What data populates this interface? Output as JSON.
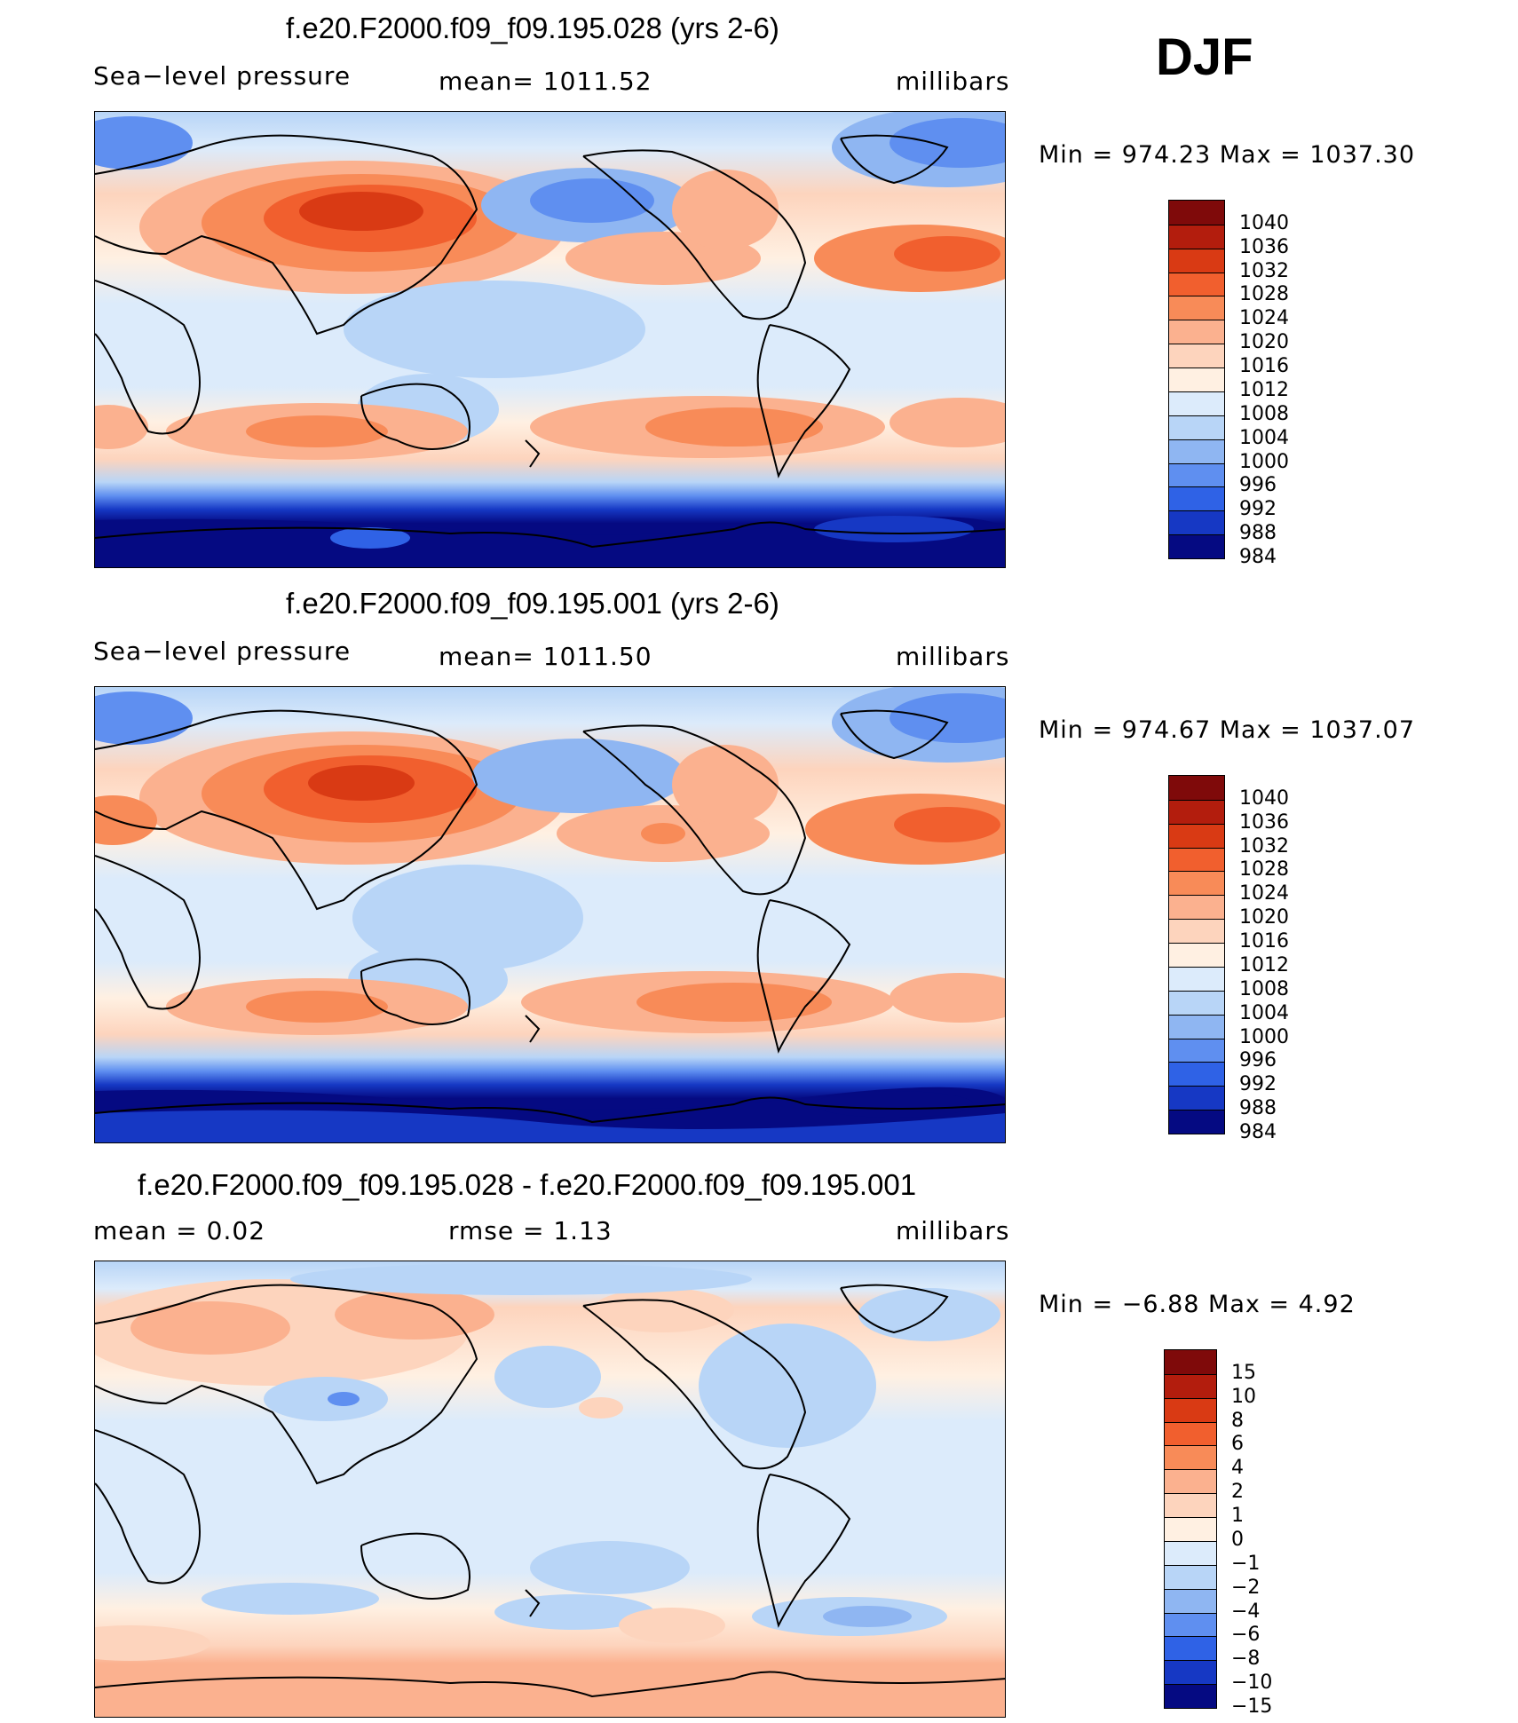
{
  "season": "DJF",
  "panels": [
    {
      "id": "p1",
      "title": "f.e20.F2000.f09_f09.195.028 (yrs 2-6)",
      "left_label": "Sea−level pressure",
      "center_label": "mean=  1011.52",
      "right_label": "millibars",
      "min_max": "Min  =  974.23  Max  =  1037.30",
      "legend_levels": [
        "1040",
        "1036",
        "1032",
        "1028",
        "1024",
        "1020",
        "1016",
        "1012",
        "1008",
        "1004",
        "1000",
        "996",
        "992",
        "988",
        "984"
      ]
    },
    {
      "id": "p2",
      "title": "f.e20.F2000.f09_f09.195.001 (yrs 2-6)",
      "left_label": "Sea−level pressure",
      "center_label": "mean=  1011.50",
      "right_label": "millibars",
      "min_max": "Min  =  974.67  Max  =  1037.07",
      "legend_levels": [
        "1040",
        "1036",
        "1032",
        "1028",
        "1024",
        "1020",
        "1016",
        "1012",
        "1008",
        "1004",
        "1000",
        "996",
        "992",
        "988",
        "984"
      ]
    },
    {
      "id": "p3",
      "title": "f.e20.F2000.f09_f09.195.028 - f.e20.F2000.f09_f09.195.001",
      "left_label": "mean  =      0.02",
      "center_label": "rmse  =      1.13",
      "right_label": "millibars",
      "min_max": "Min  =    −6.88  Max  =        4.92",
      "legend_levels": [
        "15",
        "10",
        "8",
        "6",
        "4",
        "2",
        "1",
        "0",
        "−1",
        "−2",
        "−4",
        "−6",
        "−8",
        "−10",
        "−15"
      ]
    }
  ],
  "colors": {
    "slp_scale": [
      "#7f0a0a",
      "#b31d0d",
      "#d93a14",
      "#f15f2e",
      "#f88b58",
      "#fbb18f",
      "#fdd4bd",
      "#fff0e2",
      "#dcebfb",
      "#b8d5f7",
      "#8fb6f2",
      "#5f8ff0",
      "#2f62e6",
      "#1638c4",
      "#050a82"
    ],
    "diff_scale": [
      "#7f0a0a",
      "#b31d0d",
      "#d93a14",
      "#f15f2e",
      "#f88b58",
      "#fbb18f",
      "#fdd4bd",
      "#fff0e2",
      "#dcebfb",
      "#b8d5f7",
      "#8fb6f2",
      "#5f8ff0",
      "#2f62e6",
      "#1638c4",
      "#050a82"
    ]
  }
}
